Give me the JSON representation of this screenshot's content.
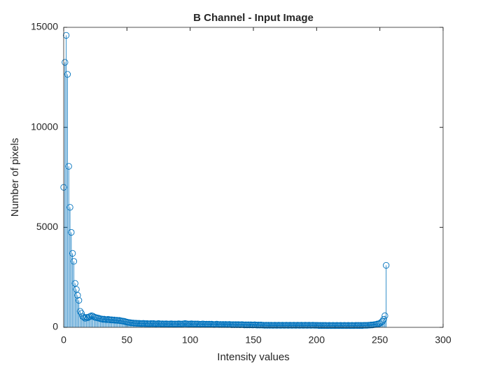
{
  "chart_data": {
    "type": "stem",
    "title": "B Channel - Input Image",
    "xlabel": "Intensity values",
    "ylabel": "Number of pixels",
    "series": [
      {
        "color": "#0072BD",
        "x": [
          0,
          1,
          2,
          3,
          4,
          5,
          6,
          7,
          8,
          9,
          10,
          11,
          12,
          13,
          14,
          15,
          16,
          17,
          18,
          19,
          20,
          21,
          22,
          23,
          24,
          25,
          26,
          27,
          28,
          29,
          30,
          31,
          32,
          33,
          34,
          35,
          36,
          37,
          38,
          39,
          40,
          41,
          42,
          43,
          44,
          45,
          46,
          47,
          48,
          49,
          50,
          51,
          52,
          53,
          54,
          55,
          56,
          57,
          58,
          59,
          60,
          61,
          62,
          63,
          64,
          65,
          66,
          67,
          68,
          69,
          70,
          71,
          72,
          73,
          74,
          75,
          76,
          77,
          78,
          79,
          80,
          81,
          82,
          83,
          84,
          85,
          86,
          87,
          88,
          89,
          90,
          91,
          92,
          93,
          94,
          95,
          96,
          97,
          98,
          99,
          100,
          101,
          102,
          103,
          104,
          105,
          106,
          107,
          108,
          109,
          110,
          111,
          112,
          113,
          114,
          115,
          116,
          117,
          118,
          119,
          120,
          121,
          122,
          123,
          124,
          125,
          126,
          127,
          128,
          129,
          130,
          131,
          132,
          133,
          134,
          135,
          136,
          137,
          138,
          139,
          140,
          141,
          142,
          143,
          144,
          145,
          146,
          147,
          148,
          149,
          150,
          151,
          152,
          153,
          154,
          155,
          156,
          157,
          158,
          159,
          160,
          161,
          162,
          163,
          164,
          165,
          166,
          167,
          168,
          169,
          170,
          171,
          172,
          173,
          174,
          175,
          176,
          177,
          178,
          179,
          180,
          181,
          182,
          183,
          184,
          185,
          186,
          187,
          188,
          189,
          190,
          191,
          192,
          193,
          194,
          195,
          196,
          197,
          198,
          199,
          200,
          201,
          202,
          203,
          204,
          205,
          206,
          207,
          208,
          209,
          210,
          211,
          212,
          213,
          214,
          215,
          216,
          217,
          218,
          219,
          220,
          221,
          222,
          223,
          224,
          225,
          226,
          227,
          228,
          229,
          230,
          231,
          232,
          233,
          234,
          235,
          236,
          237,
          238,
          239,
          240,
          241,
          242,
          243,
          244,
          245,
          246,
          247,
          248,
          249,
          250,
          251,
          252,
          253,
          254,
          255
        ],
        "values": [
          7000,
          13250,
          14600,
          12650,
          8050,
          6000,
          4750,
          3700,
          3300,
          2200,
          1900,
          1600,
          1350,
          800,
          700,
          550,
          500,
          450,
          500,
          480,
          520,
          550,
          580,
          560,
          520,
          500,
          480,
          470,
          450,
          430,
          420,
          400,
          410,
          390,
          380,
          400,
          390,
          370,
          380,
          360,
          370,
          350,
          360,
          340,
          350,
          330,
          320,
          310,
          300,
          280,
          260,
          250,
          240,
          230,
          220,
          220,
          210,
          210,
          200,
          200,
          200,
          190,
          190,
          200,
          190,
          180,
          190,
          180,
          180,
          190,
          180,
          190,
          180,
          170,
          180,
          190,
          180,
          170,
          180,
          170,
          170,
          180,
          170,
          160,
          170,
          180,
          170,
          160,
          170,
          160,
          170,
          180,
          170,
          160,
          170,
          180,
          190,
          180,
          170,
          160,
          170,
          180,
          170,
          160,
          170,
          160,
          170,
          160,
          150,
          160,
          170,
          160,
          150,
          160,
          150,
          160,
          150,
          160,
          150,
          140,
          150,
          160,
          150,
          140,
          150,
          140,
          150,
          140,
          150,
          140,
          140,
          150,
          140,
          130,
          140,
          130,
          140,
          130,
          140,
          130,
          130,
          140,
          130,
          120,
          130,
          120,
          130,
          120,
          130,
          120,
          120,
          130,
          120,
          110,
          120,
          110,
          120,
          110,
          110,
          100,
          110,
          100,
          110,
          100,
          110,
          100,
          100,
          110,
          100,
          100,
          110,
          100,
          100,
          110,
          100,
          100,
          110,
          100,
          100,
          110,
          100,
          100,
          110,
          100,
          100,
          110,
          100,
          100,
          110,
          100,
          100,
          110,
          100,
          100,
          110,
          100,
          100,
          110,
          100,
          100,
          100,
          100,
          90,
          100,
          90,
          100,
          90,
          100,
          90,
          90,
          100,
          90,
          90,
          100,
          90,
          90,
          100,
          90,
          90,
          100,
          90,
          90,
          100,
          90,
          90,
          100,
          90,
          90,
          100,
          90,
          90,
          100,
          90,
          100,
          90,
          100,
          90,
          100,
          100,
          100,
          100,
          110,
          110,
          120,
          120,
          130,
          140,
          150,
          170,
          180,
          200,
          250,
          300,
          400,
          580,
          3100
        ]
      }
    ],
    "xlim": [
      0,
      300
    ],
    "xticks": [
      0,
      50,
      100,
      150,
      200,
      250,
      300
    ],
    "ylim": [
      0,
      15000
    ],
    "yticks": [
      0,
      5000,
      10000,
      15000
    ]
  }
}
